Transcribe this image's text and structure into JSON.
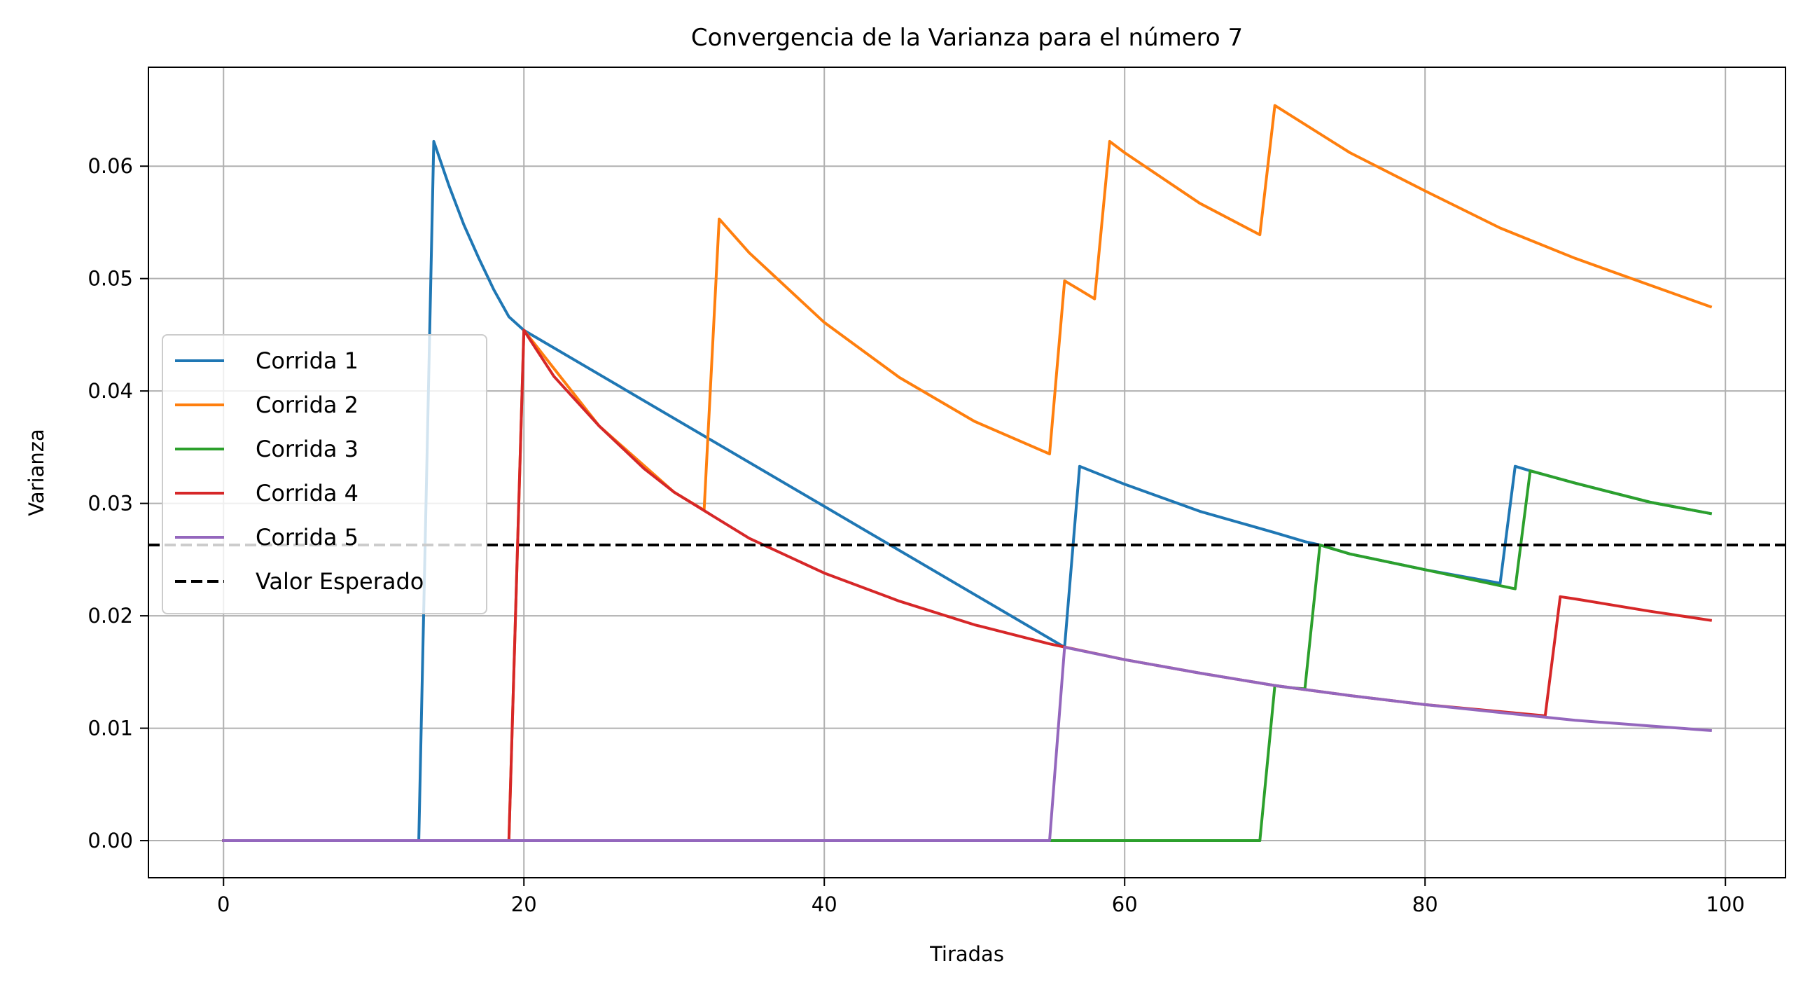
{
  "chart_data": {
    "type": "line",
    "title": "Convergencia de la Varianza para el número 7",
    "xlabel": "Tiradas",
    "ylabel": "Varianza",
    "xlim": [
      -5,
      104
    ],
    "ylim": [
      -0.0033,
      0.0688
    ],
    "xticks": [
      0,
      20,
      40,
      60,
      80,
      100
    ],
    "xtick_labels": [
      "0",
      "20",
      "40",
      "60",
      "80",
      "100"
    ],
    "yticks": [
      0.0,
      0.01,
      0.02,
      0.03,
      0.04,
      0.05,
      0.06
    ],
    "ytick_labels": [
      "0.00",
      "0.01",
      "0.02",
      "0.03",
      "0.04",
      "0.05",
      "0.06"
    ],
    "grid": true,
    "legend_position": "center-left",
    "x_range": [
      0,
      99
    ],
    "series": [
      {
        "name": "Corrida 1",
        "color": "#1f77b4",
        "style": "solid",
        "points": [
          [
            0,
            0
          ],
          [
            13,
            0
          ],
          [
            14,
            0.0622
          ],
          [
            15,
            0.0583
          ],
          [
            16,
            0.0548
          ],
          [
            17,
            0.0518
          ],
          [
            18,
            0.049
          ],
          [
            19,
            0.0466
          ],
          [
            20,
            0.0454
          ],
          [
            56,
            0.0172
          ],
          [
            57,
            0.0333
          ],
          [
            60,
            0.0317
          ],
          [
            65,
            0.0293
          ],
          [
            70,
            0.0274
          ],
          [
            72,
            0.0266
          ],
          [
            73,
            0.0263
          ],
          [
            75,
            0.0255
          ],
          [
            80,
            0.0241
          ],
          [
            85,
            0.0229
          ],
          [
            86,
            0.0333
          ],
          [
            87,
            0.0329
          ],
          [
            90,
            0.0318
          ],
          [
            95,
            0.0301
          ],
          [
            99,
            0.0291
          ]
        ]
      },
      {
        "name": "Corrida 2",
        "color": "#ff7f0e",
        "style": "solid",
        "points": [
          [
            0,
            0
          ],
          [
            19,
            0
          ],
          [
            20,
            0.0454
          ],
          [
            25,
            0.0369
          ],
          [
            30,
            0.031
          ],
          [
            32,
            0.0294
          ],
          [
            33,
            0.0553
          ],
          [
            35,
            0.0523
          ],
          [
            40,
            0.0461
          ],
          [
            45,
            0.0412
          ],
          [
            50,
            0.0373
          ],
          [
            55,
            0.0344
          ],
          [
            56,
            0.0498
          ],
          [
            57,
            0.049
          ],
          [
            58,
            0.0482
          ],
          [
            59,
            0.0622
          ],
          [
            60,
            0.0612
          ],
          [
            65,
            0.0567
          ],
          [
            69,
            0.0539
          ],
          [
            70,
            0.0654
          ],
          [
            75,
            0.0612
          ],
          [
            80,
            0.0578
          ],
          [
            85,
            0.0545
          ],
          [
            90,
            0.0518
          ],
          [
            95,
            0.0494
          ],
          [
            99,
            0.0475
          ]
        ]
      },
      {
        "name": "Corrida 3",
        "color": "#2ca02c",
        "style": "solid",
        "points": [
          [
            0,
            0
          ],
          [
            55,
            0
          ],
          [
            69,
            0
          ],
          [
            70,
            0.0138
          ],
          [
            71,
            0.0136
          ],
          [
            72,
            0.0135
          ],
          [
            73,
            0.0263
          ],
          [
            75,
            0.0255
          ],
          [
            80,
            0.0241
          ],
          [
            86,
            0.0224
          ],
          [
            87,
            0.0329
          ],
          [
            90,
            0.0318
          ],
          [
            95,
            0.0301
          ],
          [
            99,
            0.0291
          ]
        ]
      },
      {
        "name": "Corrida 4",
        "color": "#d62728",
        "style": "solid",
        "points": [
          [
            0,
            0
          ],
          [
            19,
            0
          ],
          [
            20,
            0.0454
          ],
          [
            22,
            0.0413
          ],
          [
            25,
            0.0369
          ],
          [
            28,
            0.0331
          ],
          [
            30,
            0.031
          ],
          [
            35,
            0.0269
          ],
          [
            40,
            0.0238
          ],
          [
            45,
            0.0213
          ],
          [
            50,
            0.0192
          ],
          [
            55,
            0.0175
          ],
          [
            60,
            0.0161
          ],
          [
            65,
            0.0149
          ],
          [
            70,
            0.0138
          ],
          [
            75,
            0.0129
          ],
          [
            80,
            0.0121
          ],
          [
            88,
            0.0111
          ],
          [
            89,
            0.0217
          ],
          [
            90,
            0.0215
          ],
          [
            95,
            0.0204
          ],
          [
            99,
            0.0196
          ]
        ]
      },
      {
        "name": "Corrida 5",
        "color": "#9467bd",
        "style": "solid",
        "points": [
          [
            0,
            0
          ],
          [
            55,
            0
          ],
          [
            56,
            0.0172
          ],
          [
            60,
            0.0161
          ],
          [
            65,
            0.0149
          ],
          [
            70,
            0.0138
          ],
          [
            75,
            0.0129
          ],
          [
            80,
            0.0121
          ],
          [
            85,
            0.0114
          ],
          [
            90,
            0.0107
          ],
          [
            95,
            0.0102
          ],
          [
            99,
            0.0098
          ]
        ]
      },
      {
        "name": "Valor Esperado",
        "color": "#000000",
        "style": "dashed",
        "y_constant": 0.0263
      }
    ]
  }
}
